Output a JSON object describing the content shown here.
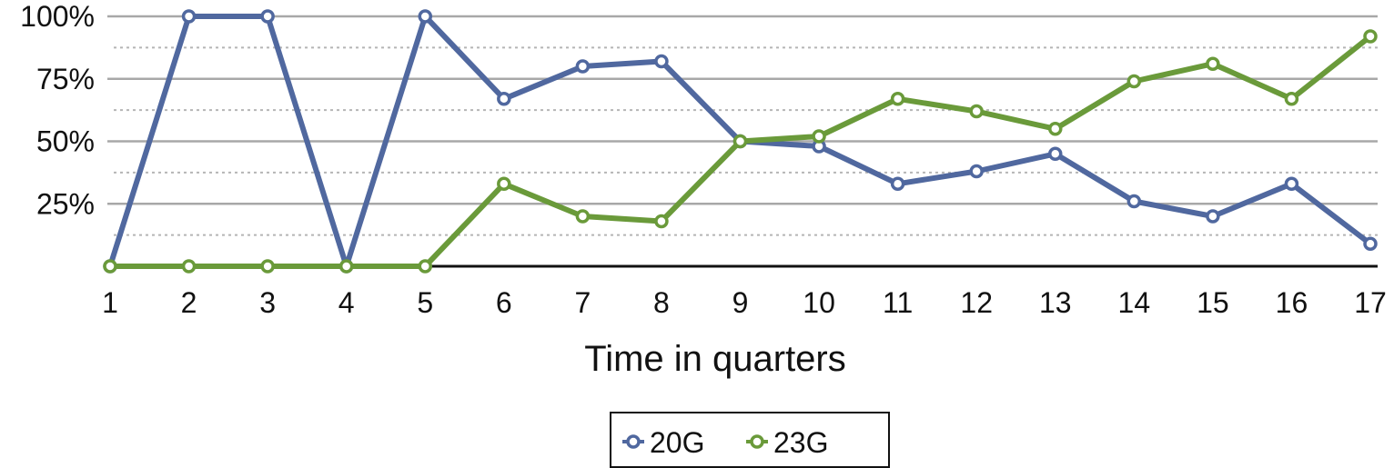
{
  "chart_data": {
    "type": "line",
    "xlabel": "Time in quarters",
    "ylabel": "",
    "categories": [
      "1",
      "2",
      "3",
      "4",
      "5",
      "6",
      "7",
      "8",
      "9",
      "10",
      "11",
      "12",
      "13",
      "14",
      "15",
      "16",
      "17"
    ],
    "y_ticks": [
      "25%",
      "50%",
      "75%",
      "100%"
    ],
    "ylim": [
      0,
      100
    ],
    "grid": true,
    "legend_position": "bottom",
    "series": [
      {
        "name": "20G",
        "color": "#50689f",
        "values": [
          0,
          100,
          100,
          0,
          100,
          67,
          80,
          82,
          50,
          48,
          33,
          38,
          45,
          26,
          20,
          33,
          9
        ]
      },
      {
        "name": "23G",
        "color": "#6a9a3a",
        "values": [
          0,
          0,
          0,
          0,
          0,
          33,
          20,
          18,
          50,
          52,
          67,
          62,
          55,
          74,
          81,
          67,
          92
        ]
      }
    ]
  }
}
